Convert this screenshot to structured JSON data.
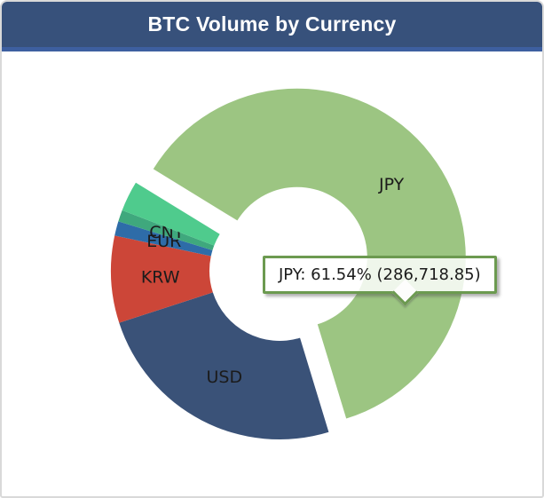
{
  "window": {
    "title": "BTC Volume by Currency"
  },
  "theme": {
    "header_bg": "#37517B",
    "header_accent": "#3D5FA0",
    "header_text": "#FFFFFF",
    "card_border": "#D9D9D9",
    "body_bg": "#FFFFFF",
    "slice_label_color": "#1B1B1B",
    "tooltip_border": "#6C9A50",
    "tooltip_bg": "rgba(255,255,255,0.84)"
  },
  "chart_data": {
    "type": "pie",
    "subtype": "donut",
    "title": "BTC Volume by Currency",
    "legend": false,
    "grid": false,
    "clockwise": true,
    "start_angle_deg": 301.5,
    "inner_radius_ratio": 0.42,
    "highlighted_slice": "JPY",
    "series": [
      {
        "name": "JPY",
        "percent": 61.54,
        "value": 286718.85,
        "color": "#9CC582",
        "exploded": true,
        "estimated": false
      },
      {
        "name": "USD",
        "percent": 24.72,
        "color": "#3A5278",
        "exploded": false,
        "estimated": true
      },
      {
        "name": "KRW",
        "percent": 8.33,
        "color": "#CC4638",
        "exploded": false,
        "estimated": true
      },
      {
        "name": "EUR",
        "percent": 1.39,
        "color": "#2E6CA8",
        "exploded": false,
        "estimated": true
      },
      {
        "name": "CNY",
        "percent": 1.11,
        "color": "#3FA87D",
        "exploded": false,
        "estimated": true
      },
      {
        "name": "",
        "percent": 2.91,
        "color": "#4FCB8D",
        "exploded": false,
        "estimated": true
      }
    ]
  },
  "tooltip": {
    "text": "JPY: 61.54% (286,718.85)"
  }
}
